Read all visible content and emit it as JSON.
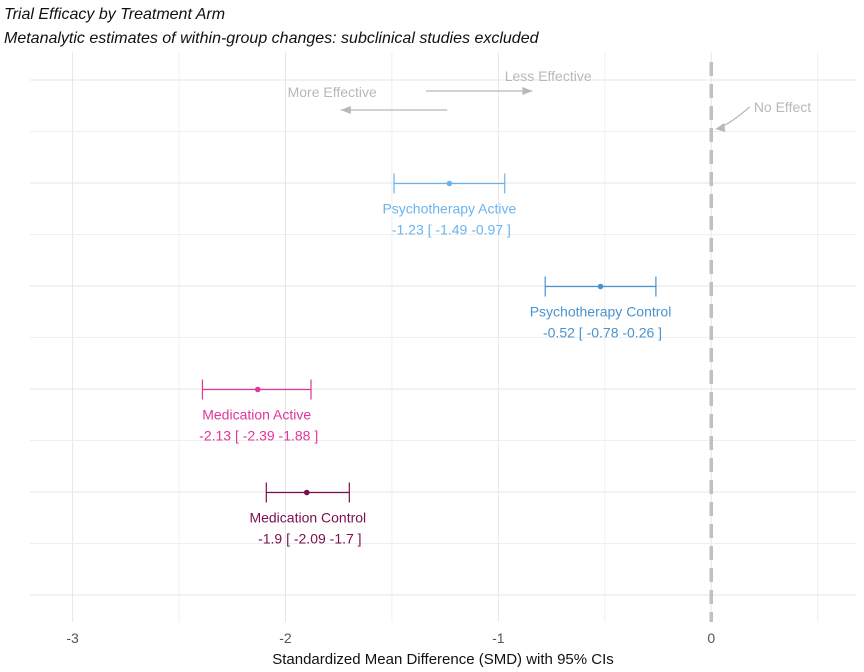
{
  "chart_data": {
    "type": "forest",
    "title": "Trial Efficacy by Treatment Arm",
    "subtitle": "Metanalytic estimates of within-group changes: subclinical studies excluded",
    "xlabel": "Standardized Mean Difference (SMD) with 95% CIs",
    "ylabel": "",
    "xlim": [
      -3.2,
      0.68
    ],
    "x_ticks": [
      -3,
      -2,
      -1,
      0
    ],
    "x_tick_labels": [
      "-3",
      "-2",
      "-1",
      "0"
    ],
    "grid": true,
    "reference_line": {
      "x": 0,
      "label": "No Effect",
      "style": "dashed",
      "color": "#c0c0c0"
    },
    "annotations": {
      "more_effective": "More Effective",
      "less_effective": "Less Effective"
    },
    "series": [
      {
        "name": "Psychotherapy Active",
        "estimate": -1.23,
        "lower": -1.49,
        "upper": -0.97,
        "ci_text": "-1.23 [ -1.49 -0.97 ]",
        "color": "#6ab4ee",
        "row": 1
      },
      {
        "name": "Psychotherapy Control",
        "estimate": -0.52,
        "lower": -0.78,
        "upper": -0.26,
        "ci_text": "-0.52 [ -0.78 -0.26 ]",
        "color": "#4a93cf",
        "row": 2
      },
      {
        "name": "Medication Active",
        "estimate": -2.13,
        "lower": -2.39,
        "upper": -1.88,
        "ci_text": "-2.13 [ -2.39 -1.88 ]",
        "color": "#e3349a",
        "row": 3
      },
      {
        "name": "Medication Control",
        "estimate": -1.9,
        "lower": -2.09,
        "upper": -1.7,
        "ci_text": "-1.9 [ -2.09 -1.7 ]",
        "color": "#7a0f4c",
        "row": 4
      }
    ]
  }
}
